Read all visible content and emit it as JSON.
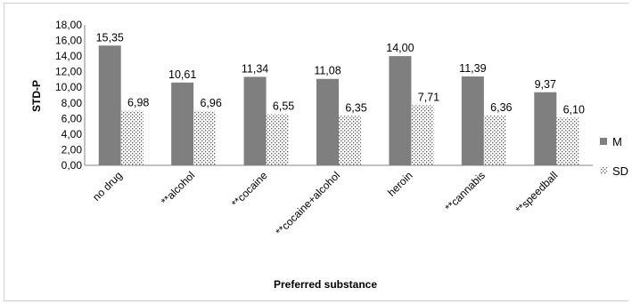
{
  "chart_data": {
    "type": "bar",
    "title": "",
    "xlabel": "Preferred substance",
    "ylabel": "STD-P",
    "ylim": [
      0,
      18
    ],
    "yticks": [
      "0,00",
      "2,00",
      "4,00",
      "6,00",
      "8,00",
      "10,00",
      "12,00",
      "14,00",
      "16,00",
      "18,00"
    ],
    "categories": [
      "no drug",
      "**alcohol",
      "**cocaine",
      "**cocaine+alcohol",
      "heroin",
      "**cannabis",
      "**speedball"
    ],
    "series": [
      {
        "name": "M",
        "values": [
          15.35,
          10.61,
          11.34,
          11.08,
          14.0,
          11.39,
          9.37
        ],
        "labels": [
          "15,35",
          "10,61",
          "11,34",
          "11,08",
          "14,00",
          "11,39",
          "9,37"
        ],
        "color": "#7f7f7f"
      },
      {
        "name": "SD",
        "values": [
          6.98,
          6.96,
          6.55,
          6.35,
          7.71,
          6.36,
          6.1
        ],
        "labels": [
          "6,98",
          "6,96",
          "6,55",
          "6,35",
          "7,71",
          "6,36",
          "6,10"
        ],
        "color": "#595959"
      }
    ],
    "legend": "right",
    "grid": false
  }
}
